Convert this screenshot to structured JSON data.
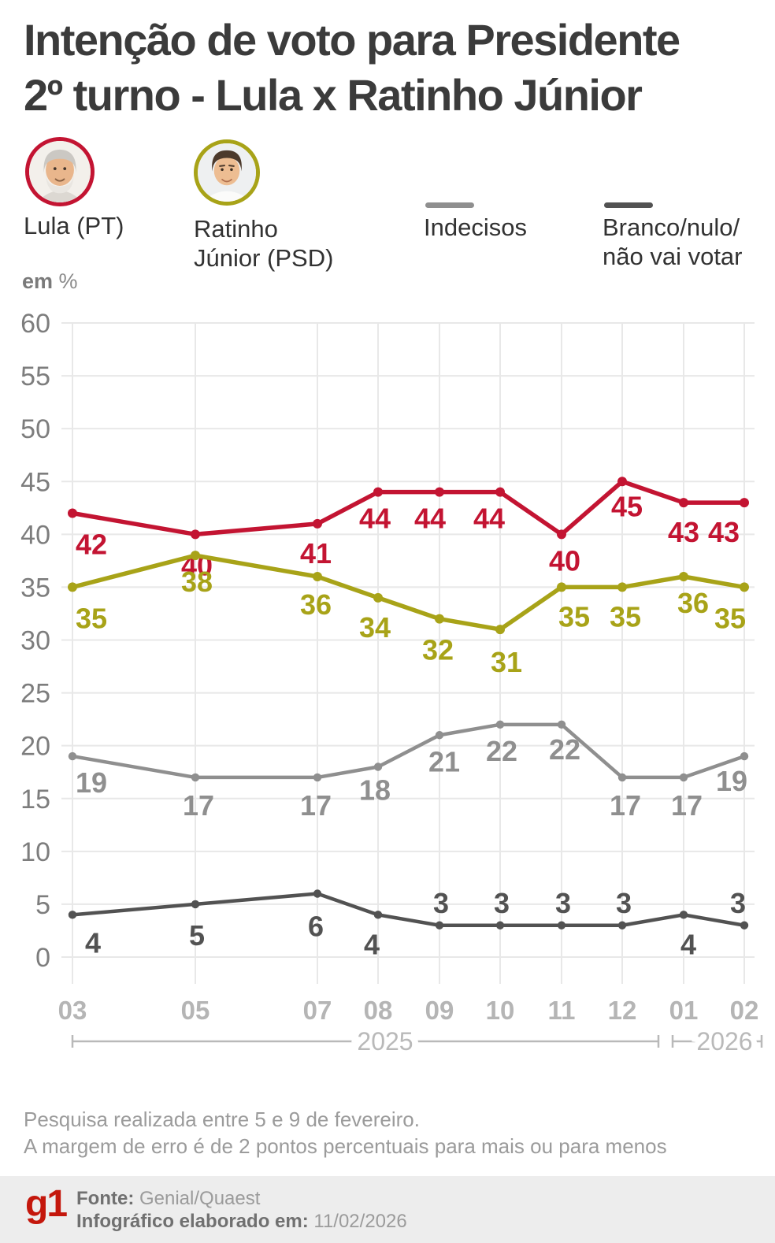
{
  "title": {
    "line1": "Intenção de voto para Presidente",
    "line2": "2º turno - Lula x Ratinho Júnior"
  },
  "legend": [
    {
      "label": "Lula (PT)",
      "color": "#c31432",
      "marker": "avatar-lula"
    },
    {
      "label": "Ratinho Júnior (PSD)",
      "label_lines": [
        "Ratinho",
        "Júnior (PSD)"
      ],
      "color": "#a8a318",
      "marker": "avatar-ratinho"
    },
    {
      "label": "Indecisos",
      "color": "#8f8f8f",
      "marker": "line-swatch"
    },
    {
      "label": "Branco/nulo/não vai votar",
      "label_lines": [
        "Branco/nulo/",
        "não vai votar"
      ],
      "color": "#525252",
      "marker": "line-swatch"
    }
  ],
  "unit": {
    "bold": "em",
    "rest": "%"
  },
  "chart_data": {
    "type": "line",
    "x": [
      "03",
      "05",
      "07",
      "08",
      "09",
      "10",
      "11",
      "12",
      "01",
      "02"
    ],
    "x_year_groups": [
      {
        "label": "2025",
        "from": "03",
        "to": "12"
      },
      {
        "label": "2026",
        "from": "01",
        "to": "02"
      }
    ],
    "series": [
      {
        "name": "Lula (PT)",
        "color": "#c31432",
        "values": [
          42,
          40,
          41,
          44,
          44,
          44,
          40,
          45,
          43,
          43
        ]
      },
      {
        "name": "Ratinho Júnior (PSD)",
        "color": "#a8a318",
        "values": [
          35,
          38,
          36,
          34,
          32,
          31,
          35,
          35,
          36,
          35
        ]
      },
      {
        "name": "Indecisos",
        "color": "#8f8f8f",
        "values": [
          19,
          17,
          17,
          18,
          21,
          22,
          22,
          17,
          17,
          19
        ]
      },
      {
        "name": "Branco/nulo/não vai votar",
        "color": "#525252",
        "values": [
          4,
          5,
          6,
          4,
          3,
          3,
          3,
          3,
          4,
          3
        ]
      }
    ],
    "ylabel": "em %",
    "ylim": [
      0,
      60
    ],
    "ytick_step": 5,
    "grid": true,
    "legend_position": "top"
  },
  "notes": {
    "line1": "Pesquisa realizada entre 5 e 9 de fevereiro.",
    "line2": "A margem de erro é de 2 pontos percentuais para mais ou para menos"
  },
  "source_bar": {
    "logo": "g1",
    "logo_color": "#c4170c",
    "source_label": "Fonte:",
    "source_value": "Genial/Quaest",
    "info_label": "Infográfico elaborado em:",
    "info_value": "11/02/2026"
  }
}
